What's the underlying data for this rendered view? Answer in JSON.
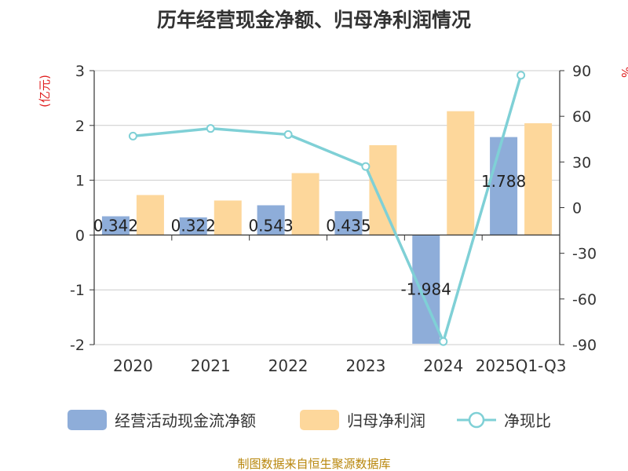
{
  "chart_data": {
    "type": "bar",
    "title": "历年经营现金净额、归母净利润情况",
    "categories": [
      "2020",
      "2021",
      "2022",
      "2023",
      "2024",
      "2025Q1-Q3"
    ],
    "series": [
      {
        "name": "经营活动现金流净额",
        "kind": "bar",
        "axis": "left",
        "color": "#8eadd9",
        "values": [
          0.342,
          0.322,
          0.543,
          0.435,
          -1.984,
          1.788
        ],
        "labels": [
          "0.342",
          "0.322",
          "0.543",
          "0.435",
          "-1.984",
          "1.788"
        ]
      },
      {
        "name": "归母净利润",
        "kind": "bar",
        "axis": "left",
        "color": "#fdd79b",
        "values": [
          0.73,
          0.63,
          1.13,
          1.64,
          2.26,
          2.04
        ]
      },
      {
        "name": "净现比",
        "kind": "line",
        "axis": "right",
        "color": "#7fd0d6",
        "values": [
          47,
          52,
          48,
          27,
          -88,
          87
        ]
      }
    ],
    "yleft": {
      "unit": "(亿元)",
      "ylim": [
        -2,
        3
      ],
      "ticks": [
        3,
        2,
        1,
        0,
        -1,
        -2
      ],
      "tick_labels": [
        "3",
        "2",
        "1",
        "0",
        "-1",
        "-2"
      ]
    },
    "yright": {
      "unit": "%",
      "ylim": [
        -90,
        90
      ],
      "ticks": [
        90,
        60,
        30,
        0,
        -30,
        -60,
        -90
      ],
      "tick_labels": [
        "90",
        "60",
        "30",
        "0",
        "-30",
        "-60",
        "-90"
      ]
    },
    "grid": true,
    "legend_position": "bottom"
  },
  "source": "制图数据来自恒生聚源数据库"
}
